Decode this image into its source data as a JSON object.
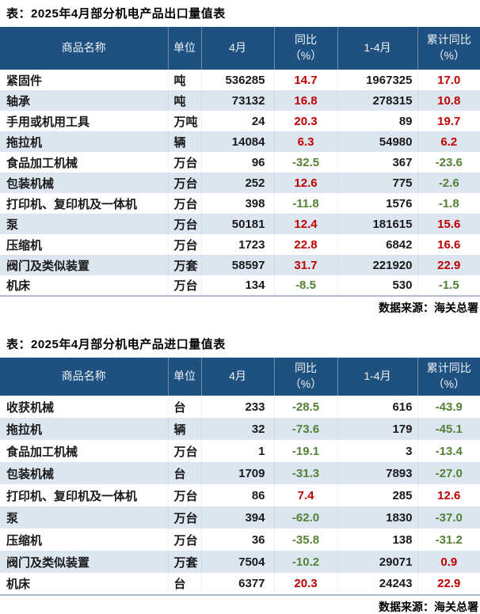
{
  "colors": {
    "header_bg": "#1f5180",
    "header_text": "#eef3f8",
    "zebra_row_bg": "#dce6f1",
    "positive_value": "#c00000",
    "negative_value": "#538135",
    "table_bottom_rule": "#a9bdd3"
  },
  "tables": [
    {
      "title": "表：2025年4月部分机电产品出口量值表",
      "source": "数据来源：海关总署",
      "headers": [
        "商品名称",
        "单位",
        "4月",
        "同比\n（%）",
        "1-4月",
        "累计同比\n（%）"
      ],
      "rows": [
        {
          "name": "紧固件",
          "unit": "吨",
          "april": "536285",
          "yoy": "14.7",
          "jan_apr": "1967325",
          "cum_yoy": "17.0"
        },
        {
          "name": "轴承",
          "unit": "吨",
          "april": "73132",
          "yoy": "16.8",
          "jan_apr": "278315",
          "cum_yoy": "10.8"
        },
        {
          "name": "手用或机用工具",
          "unit": "万吨",
          "april": "24",
          "yoy": "20.3",
          "jan_apr": "89",
          "cum_yoy": "19.7"
        },
        {
          "name": "拖拉机",
          "unit": "辆",
          "april": "14084",
          "yoy": "6.3",
          "jan_apr": "54980",
          "cum_yoy": "6.2"
        },
        {
          "name": "食品加工机械",
          "unit": "万台",
          "april": "96",
          "yoy": "-32.5",
          "jan_apr": "367",
          "cum_yoy": "-23.6"
        },
        {
          "name": "包装机械",
          "unit": "万台",
          "april": "252",
          "yoy": "12.6",
          "jan_apr": "775",
          "cum_yoy": "-2.6"
        },
        {
          "name": "打印机、复印机及一体机",
          "unit": "万台",
          "april": "398",
          "yoy": "-11.8",
          "jan_apr": "1576",
          "cum_yoy": "-1.8"
        },
        {
          "name": "泵",
          "unit": "万台",
          "april": "50181",
          "yoy": "12.4",
          "jan_apr": "181615",
          "cum_yoy": "15.6"
        },
        {
          "name": "压缩机",
          "unit": "万台",
          "april": "1723",
          "yoy": "22.8",
          "jan_apr": "6842",
          "cum_yoy": "16.6"
        },
        {
          "name": "阀门及类似装置",
          "unit": "万套",
          "april": "58597",
          "yoy": "31.7",
          "jan_apr": "221920",
          "cum_yoy": "22.9"
        },
        {
          "name": "机床",
          "unit": "万台",
          "april": "134",
          "yoy": "-8.5",
          "jan_apr": "530",
          "cum_yoy": "-1.5"
        }
      ]
    },
    {
      "title": "表：2025年4月部分机电产品进口量值表",
      "source": "数据来源：海关总署",
      "headers": [
        "商品名称",
        "单位",
        "4月",
        "同比\n（%）",
        "1-4月",
        "累计同比\n（%）"
      ],
      "rows": [
        {
          "name": "收获机械",
          "unit": "台",
          "april": "233",
          "yoy": "-28.5",
          "jan_apr": "616",
          "cum_yoy": "-43.9"
        },
        {
          "name": "拖拉机",
          "unit": "辆",
          "april": "32",
          "yoy": "-73.6",
          "jan_apr": "179",
          "cum_yoy": "-45.1"
        },
        {
          "name": "食品加工机械",
          "unit": "万台",
          "april": "1",
          "yoy": "-19.1",
          "jan_apr": "3",
          "cum_yoy": "-13.4"
        },
        {
          "name": "包装机械",
          "unit": "台",
          "april": "1709",
          "yoy": "-31.3",
          "jan_apr": "7893",
          "cum_yoy": "-27.0"
        },
        {
          "name": "打印机、复印机及一体机",
          "unit": "万台",
          "april": "86",
          "yoy": "7.4",
          "jan_apr": "285",
          "cum_yoy": "12.6"
        },
        {
          "name": "泵",
          "unit": "万台",
          "april": "394",
          "yoy": "-62.0",
          "jan_apr": "1830",
          "cum_yoy": "-37.0"
        },
        {
          "name": "压缩机",
          "unit": "万台",
          "april": "36",
          "yoy": "-35.8",
          "jan_apr": "138",
          "cum_yoy": "-31.2"
        },
        {
          "name": "阀门及类似装置",
          "unit": "万套",
          "april": "7504",
          "yoy": "-10.2",
          "jan_apr": "29071",
          "cum_yoy": "0.9"
        },
        {
          "name": "机床",
          "unit": "台",
          "april": "6377",
          "yoy": "20.3",
          "jan_apr": "24243",
          "cum_yoy": "22.9"
        }
      ]
    }
  ]
}
